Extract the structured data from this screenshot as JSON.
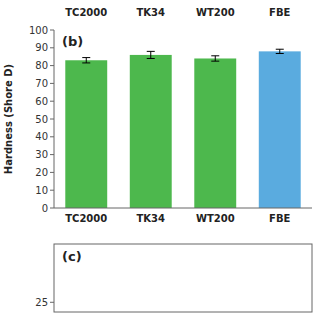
{
  "chart_data": [
    {
      "type": "bar",
      "categories": [
        "TC2000",
        "TK34",
        "WT200",
        "FBE"
      ],
      "values": [
        83.0,
        86.0,
        84.0,
        88.0
      ],
      "errors": [
        1.5,
        2.0,
        1.5,
        1.2
      ],
      "colors": [
        "#4db84d",
        "#4db84d",
        "#4db84d",
        "#5aabdf"
      ],
      "y_label": "Hardness (Shore D)",
      "ylim": [
        0,
        100
      ],
      "yticks": [
        0,
        10,
        20,
        30,
        40,
        50,
        60,
        70,
        80,
        90,
        100
      ],
      "annotations": [
        {
          "text": "(b)"
        },
        {
          "text": "WT200",
          "category": "WT200"
        },
        {
          "text": "TK34",
          "category": "TK34"
        },
        {
          "text": "TC2000",
          "category": "TC2000"
        },
        {
          "text": "FBE",
          "category": "FBE"
        }
      ]
    },
    {
      "type": "empty",
      "ylim": [
        24.5,
        28
      ],
      "yticks": [
        25
      ],
      "tick_labels": "y",
      "annotations": [
        {
          "text": "(c)"
        }
      ]
    }
  ]
}
